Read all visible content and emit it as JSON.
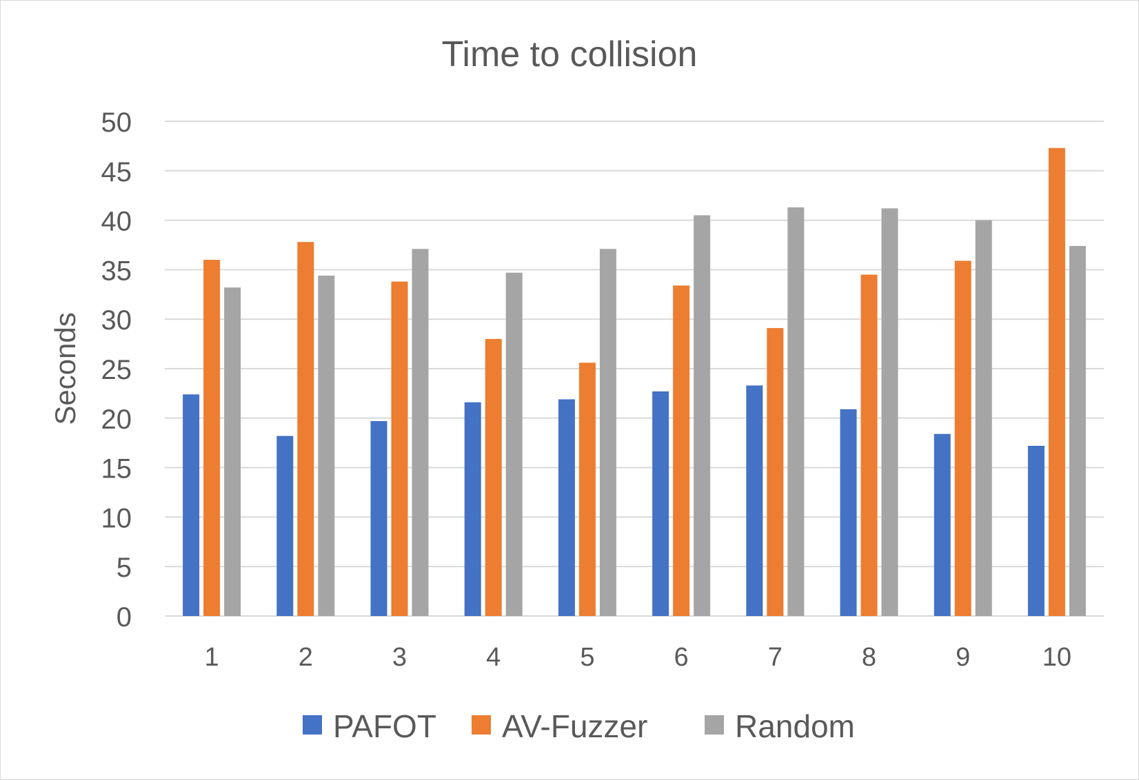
{
  "chart_data": {
    "type": "bar",
    "title": "Time to collision",
    "xlabel": "",
    "ylabel": "Seconds",
    "categories": [
      "1",
      "2",
      "3",
      "4",
      "5",
      "6",
      "7",
      "8",
      "9",
      "10"
    ],
    "series": [
      {
        "name": "PAFOT",
        "color": "#4472C4",
        "values": [
          22.4,
          18.2,
          19.7,
          21.6,
          21.9,
          22.7,
          23.3,
          20.9,
          18.4,
          17.2
        ]
      },
      {
        "name": "AV-Fuzzer",
        "color": "#ED7D31",
        "values": [
          36.0,
          37.8,
          33.8,
          28.0,
          25.6,
          33.4,
          29.1,
          34.5,
          35.9,
          47.3
        ]
      },
      {
        "name": "Random",
        "color": "#A5A5A5",
        "values": [
          33.2,
          34.4,
          37.1,
          34.7,
          37.1,
          40.5,
          41.3,
          41.2,
          40.0,
          37.4
        ]
      }
    ],
    "ylim": [
      0,
      50
    ],
    "yticks": [
      0,
      5,
      10,
      15,
      20,
      25,
      30,
      35,
      40,
      45,
      50
    ],
    "grid": true,
    "legend": "bottom"
  }
}
